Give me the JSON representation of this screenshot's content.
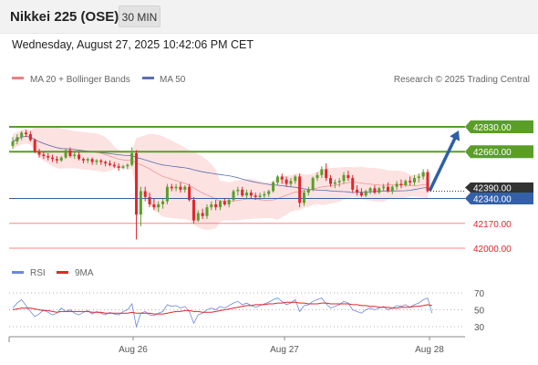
{
  "header": {
    "title": "Nikkei 225 (OSE)",
    "interval": "30 MIN"
  },
  "timestamp": "Wednesday, August 27, 2025 10:42:06 PM CET",
  "colors": {
    "candle_up": "#5a9e28",
    "candle_down": "#e0262b",
    "level_green": "#5a9e28",
    "level_red": "#f28a8a",
    "level_blue": "#3460a8",
    "ma20": "#f08080",
    "ma50": "#5b6fb0",
    "bollinger_fill": "#fde2e2",
    "arrow": "#2e5fa6",
    "rsi": "#6f86de",
    "rsi_ma": "#e0262b"
  },
  "chart_data": [
    {
      "type": "candlestick",
      "legend": [
        {
          "label": "MA 20 + Bollinger Bands",
          "icon": "ma20-swatch"
        },
        {
          "label": "MA 50",
          "icon": "ma50-swatch"
        }
      ],
      "watermark": "Research © 2025 Trading Central",
      "x_ticks": [
        "Aug 26",
        "Aug 27",
        "Aug 28"
      ],
      "ylim": [
        41950,
        42950
      ],
      "levels": [
        {
          "value": 42830,
          "label": "42830.00",
          "kind": "resistance"
        },
        {
          "value": 42660,
          "label": "42660.00",
          "kind": "resistance"
        },
        {
          "value": 42390,
          "label": "42390.00",
          "kind": "last"
        },
        {
          "value": 42340,
          "label": "42340.00",
          "kind": "pivot"
        },
        {
          "value": 42170,
          "label": "42170.00",
          "kind": "support"
        },
        {
          "value": 42000,
          "label": "42000.00",
          "kind": "support"
        }
      ],
      "ohlc": [
        [
          42700,
          42760,
          42680,
          42730
        ],
        [
          42730,
          42780,
          42710,
          42760
        ],
        [
          42760,
          42800,
          42740,
          42790
        ],
        [
          42790,
          42810,
          42760,
          42780
        ],
        [
          42780,
          42800,
          42730,
          42740
        ],
        [
          42740,
          42750,
          42650,
          42660
        ],
        [
          42660,
          42680,
          42620,
          42640
        ],
        [
          42640,
          42660,
          42610,
          42630
        ],
        [
          42630,
          42650,
          42600,
          42620
        ],
        [
          42620,
          42640,
          42590,
          42610
        ],
        [
          42610,
          42630,
          42580,
          42600
        ],
        [
          42600,
          42630,
          42590,
          42620
        ],
        [
          42620,
          42680,
          42610,
          42670
        ],
        [
          42670,
          42690,
          42620,
          42630
        ],
        [
          42630,
          42660,
          42610,
          42640
        ],
        [
          42640,
          42660,
          42600,
          42610
        ],
        [
          42610,
          42620,
          42580,
          42600
        ],
        [
          42600,
          42620,
          42580,
          42610
        ],
        [
          42610,
          42620,
          42570,
          42590
        ],
        [
          42590,
          42610,
          42570,
          42600
        ],
        [
          42600,
          42610,
          42570,
          42590
        ],
        [
          42590,
          42600,
          42560,
          42580
        ],
        [
          42580,
          42600,
          42560,
          42570
        ],
        [
          42570,
          42590,
          42550,
          42560
        ],
        [
          42560,
          42580,
          42530,
          42550
        ],
        [
          42550,
          42570,
          42540,
          42560
        ],
        [
          42560,
          42580,
          42540,
          42570
        ],
        [
          42570,
          42690,
          42560,
          42650
        ],
        [
          42650,
          42670,
          42060,
          42230
        ],
        [
          42230,
          42420,
          42150,
          42390
        ],
        [
          42390,
          42420,
          42320,
          42350
        ],
        [
          42350,
          42380,
          42280,
          42300
        ],
        [
          42300,
          42340,
          42260,
          42280
        ],
        [
          42280,
          42320,
          42250,
          42300
        ],
        [
          42300,
          42340,
          42270,
          42320
        ],
        [
          42320,
          42440,
          42300,
          42420
        ],
        [
          42420,
          42440,
          42390,
          42410
        ],
        [
          42410,
          42440,
          42390,
          42420
        ],
        [
          42420,
          42450,
          42380,
          42400
        ],
        [
          42400,
          42430,
          42380,
          42420
        ],
        [
          42420,
          42440,
          42320,
          42330
        ],
        [
          42330,
          42350,
          42170,
          42190
        ],
        [
          42190,
          42260,
          42180,
          42240
        ],
        [
          42240,
          42270,
          42200,
          42220
        ],
        [
          42220,
          42300,
          42200,
          42280
        ],
        [
          42280,
          42320,
          42260,
          42300
        ],
        [
          42300,
          42330,
          42260,
          42280
        ],
        [
          42280,
          42330,
          42260,
          42320
        ],
        [
          42320,
          42340,
          42290,
          42300
        ],
        [
          42300,
          42340,
          42280,
          42330
        ],
        [
          42330,
          42400,
          42320,
          42390
        ],
        [
          42390,
          42420,
          42360,
          42400
        ],
        [
          42400,
          42420,
          42350,
          42360
        ],
        [
          42360,
          42400,
          42340,
          42380
        ],
        [
          42380,
          42400,
          42340,
          42360
        ],
        [
          42360,
          42380,
          42330,
          42350
        ],
        [
          42350,
          42380,
          42330,
          42360
        ],
        [
          42360,
          42390,
          42340,
          42370
        ],
        [
          42370,
          42400,
          42350,
          42390
        ],
        [
          42390,
          42460,
          42380,
          42450
        ],
        [
          42450,
          42500,
          42430,
          42490
        ],
        [
          42490,
          42510,
          42440,
          42470
        ],
        [
          42470,
          42490,
          42420,
          42440
        ],
        [
          42440,
          42480,
          42420,
          42460
        ],
        [
          42460,
          42500,
          42440,
          42490
        ],
        [
          42490,
          42510,
          42280,
          42310
        ],
        [
          42310,
          42400,
          42290,
          42380
        ],
        [
          42380,
          42420,
          42360,
          42400
        ],
        [
          42400,
          42490,
          42390,
          42480
        ],
        [
          42480,
          42520,
          42460,
          42500
        ],
        [
          42500,
          42560,
          42480,
          42540
        ],
        [
          42540,
          42580,
          42460,
          42480
        ],
        [
          42480,
          42500,
          42420,
          42440
        ],
        [
          42440,
          42470,
          42410,
          42450
        ],
        [
          42450,
          42480,
          42420,
          42460
        ],
        [
          42460,
          42520,
          42440,
          42500
        ],
        [
          42500,
          42530,
          42460,
          42480
        ],
        [
          42480,
          42500,
          42380,
          42400
        ],
        [
          42400,
          42430,
          42360,
          42380
        ],
        [
          42380,
          42410,
          42350,
          42360
        ],
        [
          42360,
          42400,
          42350,
          42390
        ],
        [
          42390,
          42420,
          42370,
          42410
        ],
        [
          42410,
          42430,
          42370,
          42380
        ],
        [
          42380,
          42420,
          42370,
          42410
        ],
        [
          42410,
          42440,
          42390,
          42420
        ],
        [
          42420,
          42450,
          42380,
          42390
        ],
        [
          42390,
          42430,
          42370,
          42420
        ],
        [
          42420,
          42460,
          42400,
          42440
        ],
        [
          42440,
          42470,
          42410,
          42430
        ],
        [
          42430,
          42470,
          42420,
          42460
        ],
        [
          42460,
          42490,
          42430,
          42450
        ],
        [
          42450,
          42500,
          42430,
          42480
        ],
        [
          42480,
          42510,
          42450,
          42490
        ],
        [
          42490,
          42540,
          42470,
          42520
        ],
        [
          42520,
          42540,
          42380,
          42390
        ]
      ]
    },
    {
      "type": "line",
      "legend": [
        {
          "label": "RSI",
          "icon": "rsi-swatch"
        },
        {
          "label": "9MA",
          "icon": "rsi-ma-swatch"
        }
      ],
      "ylim": [
        20,
        80
      ],
      "y_ticks": [
        70,
        50,
        30
      ],
      "series": [
        {
          "name": "RSI",
          "values": [
            52,
            58,
            62,
            55,
            48,
            42,
            45,
            50,
            47,
            44,
            46,
            52,
            48,
            50,
            46,
            44,
            47,
            49,
            45,
            48,
            46,
            44,
            47,
            45,
            44,
            48,
            50,
            57,
            30,
            46,
            48,
            44,
            43,
            46,
            48,
            56,
            54,
            55,
            52,
            54,
            48,
            34,
            44,
            46,
            50,
            52,
            50,
            54,
            52,
            55,
            58,
            60,
            56,
            58,
            55,
            53,
            55,
            57,
            59,
            62,
            64,
            60,
            56,
            58,
            62,
            48,
            55,
            56,
            60,
            62,
            64,
            57,
            52,
            54,
            56,
            60,
            58,
            50,
            48,
            46,
            50,
            52,
            50,
            52,
            54,
            50,
            52,
            55,
            54,
            56,
            53,
            56,
            58,
            62,
            64,
            46
          ]
        },
        {
          "name": "9MA",
          "values": [
            50,
            51,
            52,
            52,
            52,
            51,
            50,
            49,
            49,
            48,
            47,
            48,
            48,
            48,
            48,
            48,
            48,
            48,
            47,
            47,
            47,
            46,
            46,
            46,
            46,
            46,
            46,
            47,
            46,
            46,
            46,
            46,
            45,
            45,
            45,
            46,
            47,
            48,
            48,
            49,
            49,
            48,
            48,
            47,
            47,
            47,
            48,
            49,
            50,
            51,
            52,
            53,
            54,
            55,
            55,
            56,
            56,
            56,
            57,
            57,
            58,
            58,
            59,
            59,
            59,
            58,
            58,
            57,
            57,
            57,
            58,
            58,
            57,
            57,
            57,
            57,
            57,
            56,
            56,
            55,
            55,
            54,
            54,
            53,
            53,
            53,
            52,
            52,
            53,
            53,
            53,
            54,
            54,
            55,
            56,
            55
          ]
        }
      ]
    }
  ]
}
